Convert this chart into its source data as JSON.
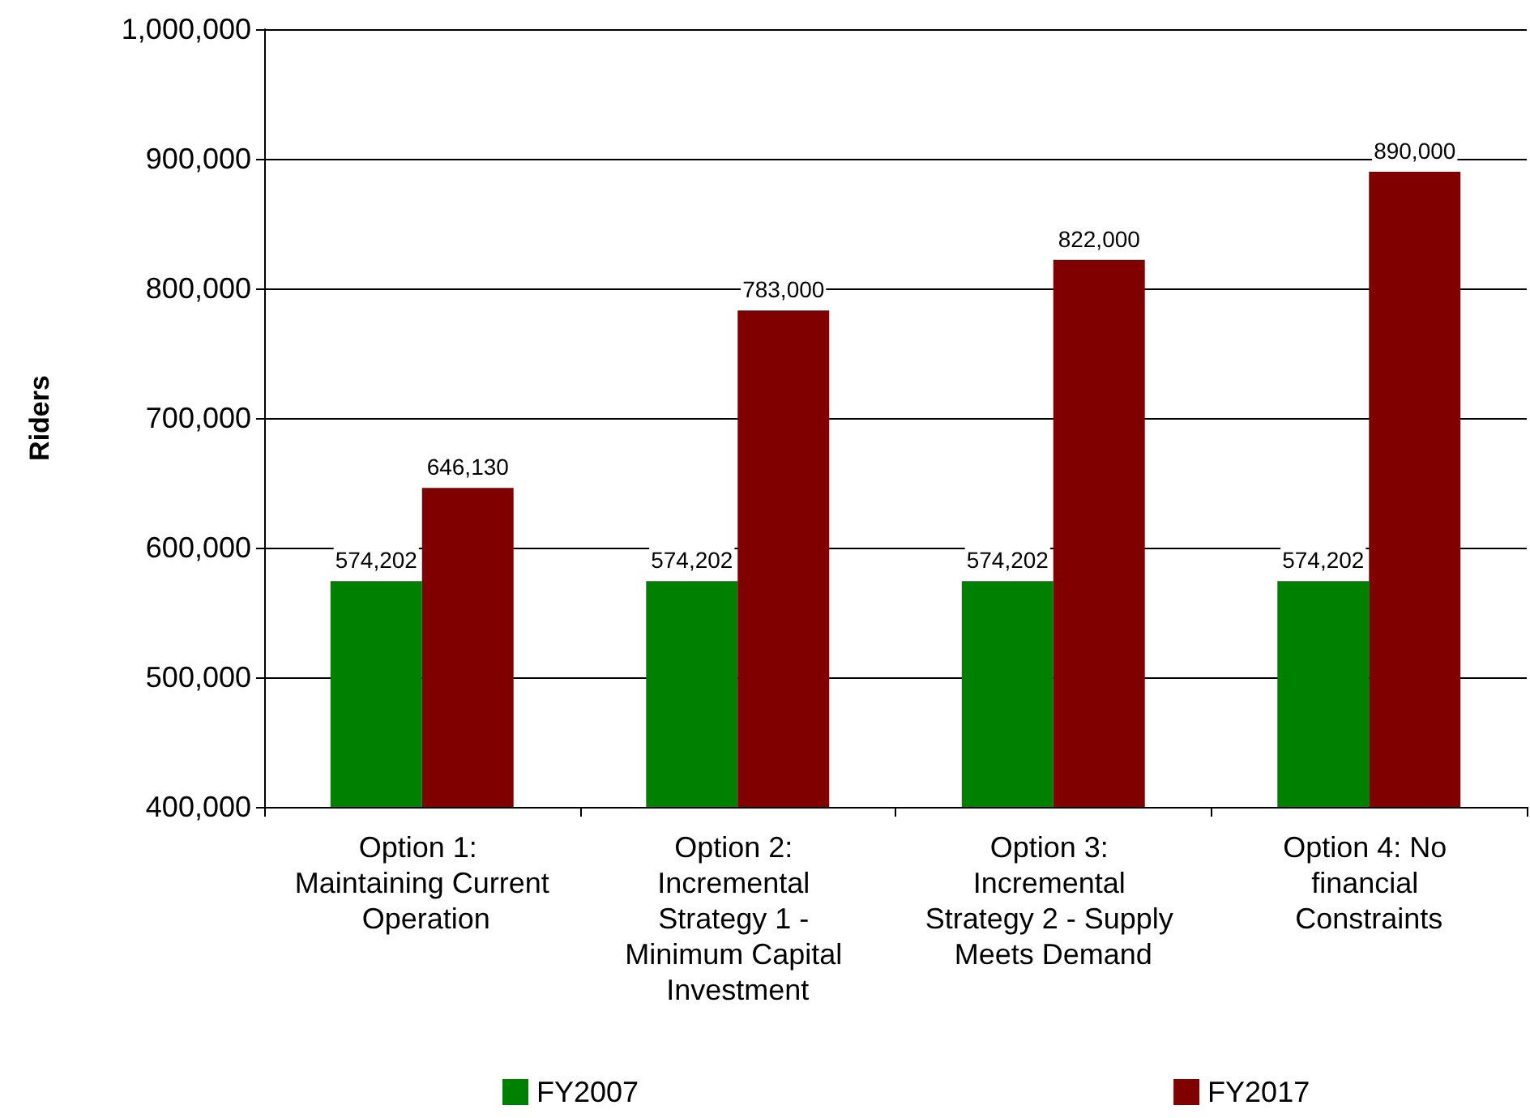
{
  "chart_data": {
    "type": "bar",
    "ylabel": "Riders",
    "categories": [
      "Option 1: Maintaining Current Operation",
      "Option 2: Incremental Strategy 1 - Minimum Capital Investment",
      "Option 3: Incremental Strategy 2 - Supply Meets Demand",
      "Option 4: No financial Constraints"
    ],
    "series": [
      {
        "name": "FY2007",
        "color": "#008000",
        "values": [
          574202,
          574202,
          574202,
          574202
        ],
        "value_labels": [
          "574,202",
          "574,202",
          "574,202",
          "574,202"
        ]
      },
      {
        "name": "FY2017",
        "color": "#800000",
        "values": [
          646130,
          783000,
          822000,
          890000
        ],
        "value_labels": [
          "646,130",
          "783,000",
          "822,000",
          "890,000"
        ]
      }
    ],
    "ylim": [
      400000,
      1000000
    ],
    "yticks": [
      {
        "value": 400000,
        "label": "400,000"
      },
      {
        "value": 500000,
        "label": "500,000"
      },
      {
        "value": 600000,
        "label": "600,000"
      },
      {
        "value": 700000,
        "label": "700,000"
      },
      {
        "value": 800000,
        "label": "800,000"
      },
      {
        "value": 900000,
        "label": "900,000"
      },
      {
        "value": 1000000,
        "label": "1,000,000"
      }
    ],
    "grid": "y",
    "legend": "bottom"
  }
}
